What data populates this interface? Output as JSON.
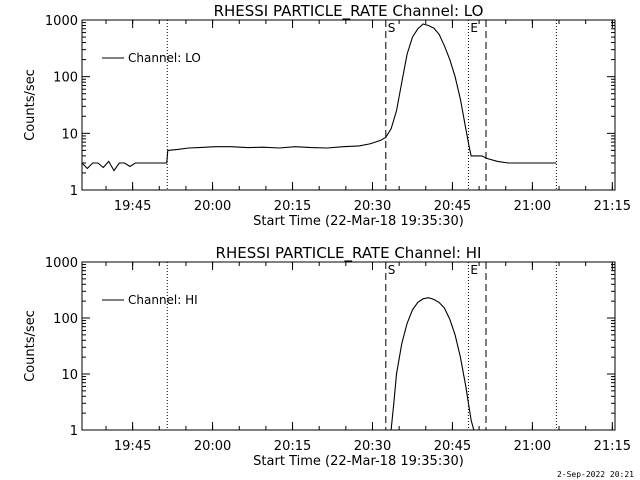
{
  "footer_text": "2-Sep-2022 20:21",
  "chart_data": [
    {
      "type": "line",
      "title": "RHESSI PARTICLE_RATE Channel: LO",
      "xlabel": "Start Time (22-Mar-18 19:35:30)",
      "ylabel": "Counts/sec",
      "yscale": "log",
      "ylim": [
        1,
        1000
      ],
      "y_ticks": [
        "1",
        "10",
        "100",
        "1000"
      ],
      "x_tick_labels": [
        "19:45",
        "20:00",
        "20:15",
        "20:30",
        "20:45",
        "21:00",
        "21:15"
      ],
      "xlim_minutes": [
        0,
        100
      ],
      "legend": {
        "label": "Channel: LO",
        "position": "top-left"
      },
      "markers": [
        {
          "label": "",
          "minute": 16.0,
          "style": "dotted"
        },
        {
          "label": "S",
          "minute": 57.0,
          "style": "dashed"
        },
        {
          "label": "E",
          "minute": 72.5,
          "style": "dotted"
        },
        {
          "label": "",
          "minute": 75.8,
          "style": "dashed"
        },
        {
          "label": "",
          "minute": 89.0,
          "style": "dotted"
        }
      ],
      "series": [
        {
          "name": "Channel: LO",
          "minutes": [
            0,
            1,
            2,
            3,
            4,
            5,
            6,
            7,
            8,
            9,
            10,
            11,
            12,
            13,
            14,
            15,
            15.9,
            16.1,
            18,
            20,
            22,
            25,
            28,
            31,
            34,
            37,
            40,
            43,
            46,
            49,
            52,
            54,
            55,
            56,
            57,
            58,
            59,
            60,
            61,
            62,
            63,
            64,
            65,
            66,
            67,
            68,
            69,
            70,
            71,
            72,
            72.6,
            73,
            74,
            75,
            76,
            78,
            80,
            82,
            84,
            86,
            88,
            89
          ],
          "values": [
            3,
            2.4,
            3,
            3,
            2.5,
            3.2,
            2.2,
            3,
            3,
            2.6,
            3,
            3,
            3,
            3,
            3,
            3,
            3,
            5,
            5.2,
            5.5,
            5.6,
            5.8,
            5.8,
            5.6,
            5.7,
            5.5,
            5.8,
            5.6,
            5.5,
            5.8,
            6,
            6.5,
            7,
            7.5,
            8.5,
            12,
            25,
            80,
            250,
            500,
            700,
            850,
            800,
            720,
            560,
            350,
            200,
            100,
            40,
            12,
            6,
            4,
            4,
            4,
            3.6,
            3.2,
            3,
            3,
            3,
            3,
            3,
            3
          ]
        }
      ]
    },
    {
      "type": "line",
      "title": "RHESSI PARTICLE_RATE Channel: HI",
      "xlabel": "Start Time (22-Mar-18 19:35:30)",
      "ylabel": "Counts/sec",
      "yscale": "log",
      "ylim": [
        1,
        1000
      ],
      "y_ticks": [
        "1",
        "10",
        "100",
        "1000"
      ],
      "x_tick_labels": [
        "19:45",
        "20:00",
        "20:15",
        "20:30",
        "20:45",
        "21:00",
        "21:15"
      ],
      "xlim_minutes": [
        0,
        100
      ],
      "legend": {
        "label": "Channel: HI",
        "position": "top-left"
      },
      "markers": [
        {
          "label": "",
          "minute": 16.0,
          "style": "dotted"
        },
        {
          "label": "S",
          "minute": 57.0,
          "style": "dashed"
        },
        {
          "label": "E",
          "minute": 72.5,
          "style": "dotted"
        },
        {
          "label": "",
          "minute": 75.8,
          "style": "dashed"
        },
        {
          "label": "",
          "minute": 89.0,
          "style": "dotted"
        }
      ],
      "series": [
        {
          "name": "Channel: HI",
          "minutes": [
            58,
            58.5,
            59,
            60,
            61,
            62,
            63,
            64,
            65,
            66,
            67,
            68,
            69,
            70,
            71,
            72,
            73,
            73.5
          ],
          "values": [
            1,
            3,
            10,
            35,
            80,
            140,
            190,
            220,
            230,
            215,
            190,
            150,
            95,
            50,
            20,
            6,
            1.5,
            1
          ]
        }
      ]
    }
  ]
}
